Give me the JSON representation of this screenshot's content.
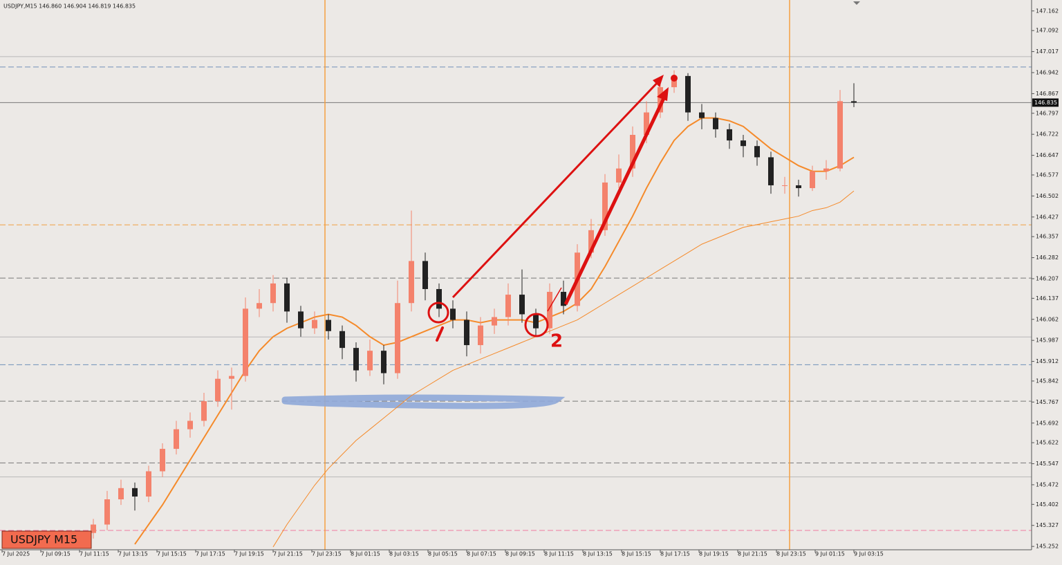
{
  "chart_data": {
    "type": "candlestick",
    "title": "USDJPY,M15  146.860 146.904 146.819 146.835",
    "badge": "USDJPY M15",
    "annotation": "2",
    "current_price": 146.835,
    "up_color": "#f4826c",
    "down_color": "#222222",
    "ylim": [
      145.24,
      147.201
    ],
    "yticks": [
      147.162,
      147.092,
      147.017,
      146.942,
      146.867,
      146.797,
      146.722,
      146.647,
      146.577,
      146.502,
      146.427,
      146.357,
      146.282,
      146.207,
      146.137,
      146.062,
      145.987,
      145.912,
      145.842,
      145.767,
      145.692,
      145.622,
      145.547,
      145.472,
      145.402,
      145.327,
      145.252
    ],
    "xlabels": [
      "7 Jul 2025",
      "7 Jul 09:15",
      "7 Jul 11:15",
      "7 Jul 13:15",
      "7 Jul 15:15",
      "7 Jul 17:15",
      "7 Jul 19:15",
      "7 Jul 21:15",
      "7 Jul 23:15",
      "8 Jul 01:15",
      "8 Jul 03:15",
      "8 Jul 05:15",
      "8 Jul 07:15",
      "8 Jul 09:15",
      "8 Jul 11:15",
      "8 Jul 13:15",
      "8 Jul 15:15",
      "8 Jul 17:15",
      "8 Jul 19:15",
      "8 Jul 21:15",
      "8 Jul 23:15",
      "9 Jul 01:15",
      "9 Jul 03:15"
    ],
    "levels": [
      {
        "value": 146.999,
        "color": "#b8b8b8",
        "dash": false
      },
      {
        "value": 146.962,
        "color": "#6f8fb8",
        "dash": true
      },
      {
        "value": 146.835,
        "color": "#777777",
        "dash": false
      },
      {
        "value": 146.399,
        "color": "#f0a040",
        "dash": true
      },
      {
        "value": 146.209,
        "color": "#777777",
        "dash": true
      },
      {
        "value": 145.999,
        "color": "#b8b8b8",
        "dash": false
      },
      {
        "value": 145.9,
        "color": "#6f8fb8",
        "dash": true
      },
      {
        "value": 145.77,
        "color": "#777777",
        "dash": true
      },
      {
        "value": 145.55,
        "color": "#777777",
        "dash": true
      },
      {
        "value": 145.5,
        "color": "#b8b8b8",
        "dash": false
      },
      {
        "value": 145.309,
        "color": "#f07aa0",
        "dash": true
      }
    ],
    "open": [
      145.3,
      145.33,
      145.42,
      145.46,
      145.43,
      145.52,
      145.6,
      145.67,
      145.7,
      145.77,
      145.85,
      145.86,
      146.1,
      146.12,
      146.19,
      146.09,
      146.03,
      146.06,
      146.02,
      145.96,
      145.88,
      145.95,
      145.87,
      146.12,
      146.27,
      146.17,
      146.1,
      146.06,
      145.97,
      146.04,
      146.07,
      146.15,
      146.08,
      146.03,
      146.16,
      146.11,
      146.3,
      146.38,
      146.55,
      146.6,
      146.72,
      146.8,
      146.89,
      146.93,
      146.8,
      146.78,
      146.74,
      146.7,
      146.68,
      146.64,
      146.54,
      146.54,
      146.53,
      146.59,
      146.6,
      146.84
    ],
    "high": [
      145.35,
      145.45,
      145.49,
      145.48,
      145.54,
      145.62,
      145.7,
      145.73,
      145.8,
      145.88,
      145.89,
      146.14,
      146.17,
      146.22,
      146.21,
      146.11,
      146.09,
      146.08,
      146.04,
      145.98,
      145.99,
      145.97,
      146.2,
      146.45,
      146.3,
      146.19,
      146.13,
      146.09,
      146.07,
      146.1,
      146.19,
      146.24,
      146.1,
      146.19,
      146.2,
      146.33,
      146.42,
      146.58,
      146.65,
      146.75,
      146.84,
      146.92,
      146.95,
      146.94,
      146.83,
      146.8,
      146.76,
      146.72,
      146.7,
      146.66,
      146.57,
      146.56,
      146.61,
      146.63,
      146.88,
      146.904
    ],
    "low": [
      145.28,
      145.31,
      145.4,
      145.38,
      145.41,
      145.5,
      145.58,
      145.64,
      145.68,
      145.75,
      145.74,
      145.84,
      146.07,
      146.09,
      146.05,
      146.0,
      146.01,
      145.99,
      145.92,
      145.84,
      145.86,
      145.83,
      145.85,
      146.09,
      146.13,
      146.07,
      146.03,
      145.93,
      145.94,
      146.01,
      146.04,
      146.05,
      146.0,
      146.01,
      146.08,
      146.09,
      146.28,
      146.36,
      146.53,
      146.57,
      146.69,
      146.78,
      146.87,
      146.77,
      146.74,
      146.71,
      146.67,
      146.64,
      146.61,
      146.51,
      146.51,
      146.5,
      146.52,
      146.56,
      146.59,
      146.819
    ],
    "close": [
      145.33,
      145.42,
      145.46,
      145.43,
      145.52,
      145.6,
      145.67,
      145.7,
      145.77,
      145.85,
      145.86,
      146.1,
      146.12,
      146.19,
      146.09,
      146.03,
      146.06,
      146.02,
      145.96,
      145.88,
      145.95,
      145.87,
      146.12,
      146.27,
      146.17,
      146.1,
      146.06,
      145.97,
      146.04,
      146.07,
      146.15,
      146.08,
      146.03,
      146.16,
      146.11,
      146.3,
      146.38,
      146.55,
      146.6,
      146.72,
      146.8,
      146.89,
      146.93,
      146.8,
      146.78,
      146.74,
      146.7,
      146.68,
      146.64,
      146.54,
      146.54,
      146.53,
      146.59,
      146.6,
      146.84,
      146.835
    ],
    "series": [
      {
        "color": "#f58a2a",
        "width": 2,
        "values": [
          null,
          null,
          null,
          145.26,
          145.33,
          145.4,
          145.48,
          145.56,
          145.64,
          145.72,
          145.8,
          145.88,
          145.95,
          146.0,
          146.03,
          146.05,
          146.07,
          146.08,
          146.07,
          146.04,
          146.0,
          145.97,
          145.98,
          146.0,
          146.02,
          146.04,
          146.06,
          146.06,
          146.05,
          146.06,
          146.06,
          146.06,
          146.05,
          146.07,
          146.09,
          146.12,
          146.17,
          146.25,
          146.34,
          146.43,
          146.53,
          146.62,
          146.7,
          146.75,
          146.78,
          146.78,
          146.77,
          146.75,
          146.71,
          146.67,
          146.64,
          146.61,
          146.59,
          146.59,
          146.61,
          146.64
        ]
      },
      {
        "color": "#f58a2a",
        "width": 1,
        "values": [
          null,
          null,
          null,
          null,
          null,
          null,
          null,
          null,
          null,
          null,
          null,
          null,
          null,
          145.25,
          145.33,
          145.4,
          145.47,
          145.53,
          145.58,
          145.63,
          145.67,
          145.71,
          145.75,
          145.79,
          145.82,
          145.85,
          145.88,
          145.9,
          145.92,
          145.94,
          145.96,
          145.98,
          146.0,
          146.02,
          146.04,
          146.06,
          146.09,
          146.12,
          146.15,
          146.18,
          146.21,
          146.24,
          146.27,
          146.3,
          146.33,
          146.35,
          146.37,
          146.39,
          146.4,
          146.41,
          146.42,
          146.43,
          146.45,
          146.46,
          146.48,
          146.52
        ]
      }
    ]
  }
}
